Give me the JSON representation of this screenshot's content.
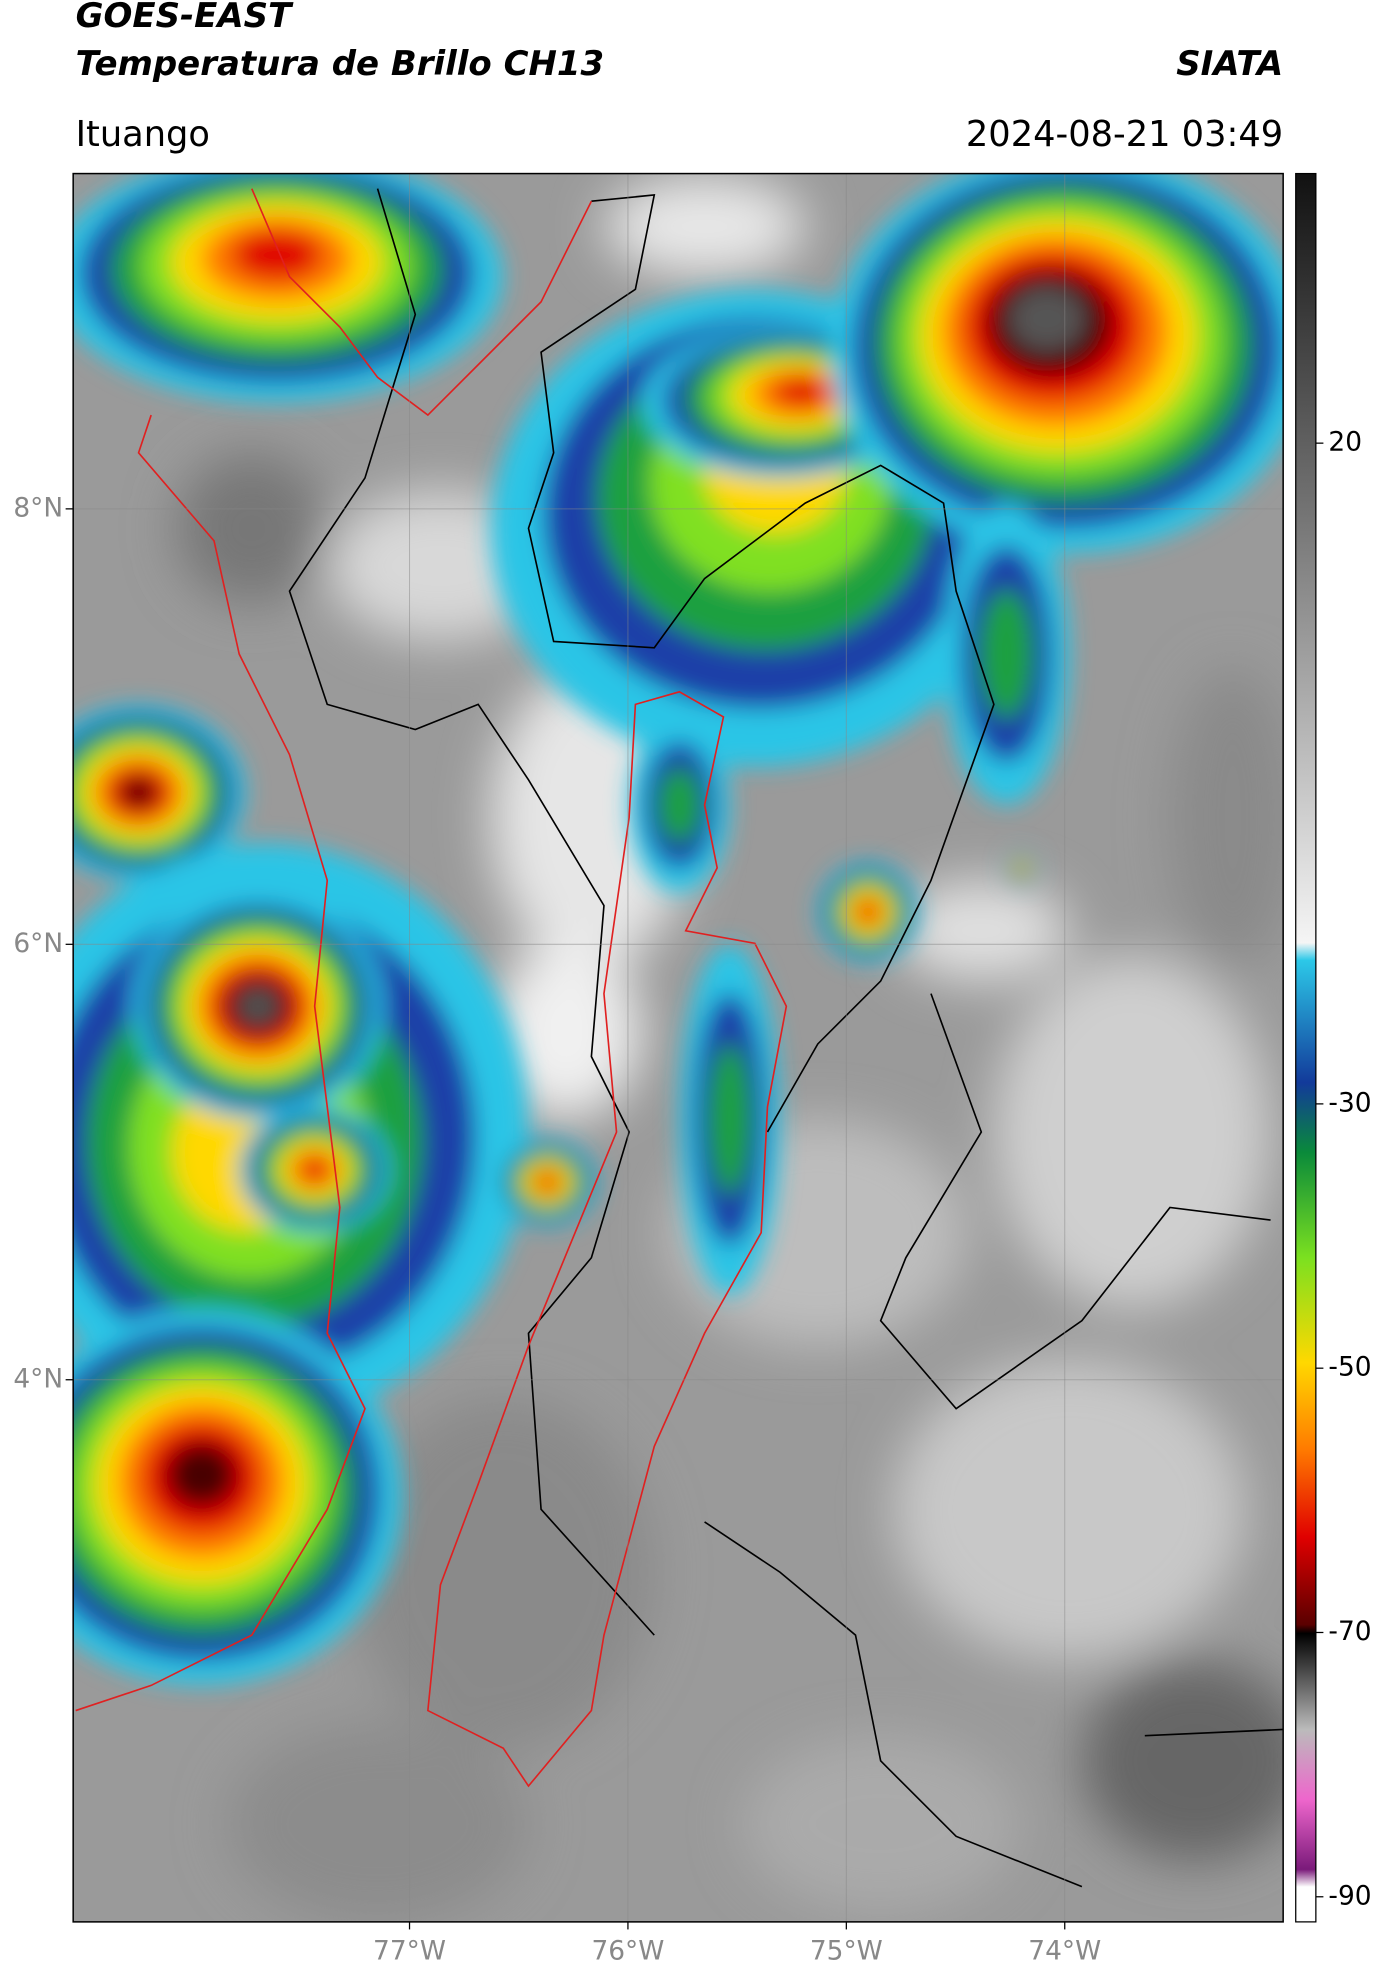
{
  "header": {
    "title": "GOES-EAST",
    "subtitle": "Temperatura de Brillo CH13",
    "source": "SIATA",
    "location": "Ituango",
    "timestamp": "2024-08-21 03:49"
  },
  "map": {
    "lonlim": [
      -78.54,
      -73.0
    ],
    "latlim": [
      1.51,
      9.54
    ],
    "lon_ticks": [
      {
        "value": -77,
        "label": "77°W"
      },
      {
        "value": -76,
        "label": "76°W"
      },
      {
        "value": -75,
        "label": "75°W"
      },
      {
        "value": -74,
        "label": "74°W"
      }
    ],
    "lat_ticks": [
      {
        "value": 8,
        "label": "8°N"
      },
      {
        "value": 6,
        "label": "6°N"
      },
      {
        "value": 4,
        "label": "4°N"
      }
    ],
    "grid": true
  },
  "colorbar": {
    "lim": [
      -91.9,
      40.4
    ],
    "ticks": [
      20,
      -30,
      -50,
      -70,
      -90
    ]
  }
}
